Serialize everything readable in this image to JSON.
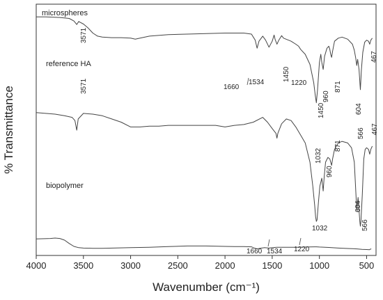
{
  "chart_data": {
    "type": "line",
    "xlabel": "Wavenumber (cm⁻¹)",
    "ylabel": "% Transmittance",
    "xlim": [
      4000,
      400
    ],
    "x_reversed": true,
    "x_ticks": [
      4000,
      3500,
      3000,
      2500,
      2000,
      1500,
      1000,
      500
    ],
    "y_ticks_shown": false,
    "grid": false,
    "y_note": "y values are relative % transmittance on an arbitrary 0-100 scale (stacked, offset spectra); the axis has no ticks",
    "series": [
      {
        "name": "microspheres",
        "points": [
          [
            4000,
            97
          ],
          [
            3900,
            97
          ],
          [
            3750,
            96.5
          ],
          [
            3650,
            95.5
          ],
          [
            3600,
            93
          ],
          [
            3571,
            89.5
          ],
          [
            3550,
            92.5
          ],
          [
            3500,
            90
          ],
          [
            3450,
            86
          ],
          [
            3400,
            81
          ],
          [
            3350,
            78
          ],
          [
            3300,
            77
          ],
          [
            3200,
            76.5
          ],
          [
            3100,
            76.5
          ],
          [
            3000,
            76
          ],
          [
            2950,
            75
          ],
          [
            2900,
            76
          ],
          [
            2800,
            78
          ],
          [
            2600,
            79.5
          ],
          [
            2400,
            80
          ],
          [
            2200,
            80.5
          ],
          [
            2000,
            81
          ],
          [
            1800,
            81
          ],
          [
            1720,
            80
          ],
          [
            1680,
            74
          ],
          [
            1660,
            66
          ],
          [
            1640,
            73
          ],
          [
            1600,
            78
          ],
          [
            1570,
            74
          ],
          [
            1534,
            67
          ],
          [
            1500,
            73
          ],
          [
            1480,
            79
          ],
          [
            1470,
            75
          ],
          [
            1450,
            70
          ],
          [
            1430,
            74
          ],
          [
            1400,
            78.5
          ],
          [
            1380,
            76
          ],
          [
            1300,
            73
          ],
          [
            1250,
            70
          ],
          [
            1220,
            68
          ],
          [
            1200,
            65
          ],
          [
            1150,
            60
          ],
          [
            1100,
            50
          ],
          [
            1060,
            32
          ],
          [
            1045,
            20
          ],
          [
            1032,
            12
          ],
          [
            1020,
            25
          ],
          [
            1000,
            52
          ],
          [
            985,
            60
          ],
          [
            975,
            52
          ],
          [
            960,
            45
          ],
          [
            945,
            58
          ],
          [
            920,
            66
          ],
          [
            900,
            68
          ],
          [
            890,
            65
          ],
          [
            880,
            60
          ],
          [
            871,
            57
          ],
          [
            860,
            63
          ],
          [
            840,
            73
          ],
          [
            800,
            76
          ],
          [
            760,
            77
          ],
          [
            700,
            75
          ],
          [
            650,
            70
          ],
          [
            630,
            64
          ],
          [
            615,
            56
          ],
          [
            604,
            49
          ],
          [
            595,
            55
          ],
          [
            580,
            45
          ],
          [
            570,
            30
          ],
          [
            566,
            25
          ],
          [
            555,
            45
          ],
          [
            540,
            62
          ],
          [
            520,
            72
          ],
          [
            500,
            74
          ],
          [
            480,
            73
          ],
          [
            467,
            70
          ],
          [
            455,
            74
          ],
          [
            440,
            76
          ]
        ]
      },
      {
        "name": "reference HA",
        "points": [
          [
            4000,
            71
          ],
          [
            3800,
            70
          ],
          [
            3700,
            69
          ],
          [
            3620,
            68
          ],
          [
            3590,
            66
          ],
          [
            3571,
            60
          ],
          [
            3555,
            67
          ],
          [
            3500,
            70.5
          ],
          [
            3400,
            70
          ],
          [
            3300,
            69
          ],
          [
            3200,
            67
          ],
          [
            3100,
            65
          ],
          [
            3000,
            62
          ],
          [
            2900,
            62
          ],
          [
            2800,
            62.5
          ],
          [
            2700,
            62.5
          ],
          [
            2600,
            63
          ],
          [
            2500,
            63
          ],
          [
            2400,
            63
          ],
          [
            2300,
            63
          ],
          [
            2200,
            63
          ],
          [
            2100,
            63
          ],
          [
            2000,
            62
          ],
          [
            1900,
            63
          ],
          [
            1800,
            63.5
          ],
          [
            1700,
            65
          ],
          [
            1600,
            68
          ],
          [
            1550,
            65
          ],
          [
            1500,
            61
          ],
          [
            1460,
            58
          ],
          [
            1450,
            55
          ],
          [
            1440,
            58
          ],
          [
            1400,
            64
          ],
          [
            1350,
            67
          ],
          [
            1300,
            66
          ],
          [
            1250,
            62
          ],
          [
            1200,
            57
          ],
          [
            1150,
            52
          ],
          [
            1100,
            40
          ],
          [
            1070,
            25
          ],
          [
            1050,
            13
          ],
          [
            1040,
            6
          ],
          [
            1032,
            3
          ],
          [
            1025,
            4
          ],
          [
            1010,
            15
          ],
          [
            995,
            25
          ],
          [
            975,
            30
          ],
          [
            960,
            22
          ],
          [
            950,
            30
          ],
          [
            935,
            40
          ],
          [
            910,
            43
          ],
          [
            890,
            42
          ],
          [
            880,
            40
          ],
          [
            871,
            38
          ],
          [
            860,
            42
          ],
          [
            840,
            48
          ],
          [
            800,
            52
          ],
          [
            760,
            53
          ],
          [
            700,
            52
          ],
          [
            660,
            49
          ],
          [
            630,
            40
          ],
          [
            615,
            22
          ],
          [
            604,
            10
          ],
          [
            598,
            14
          ],
          [
            590,
            18
          ],
          [
            580,
            10
          ],
          [
            572,
            3
          ],
          [
            566,
            0
          ],
          [
            560,
            3
          ],
          [
            545,
            20
          ],
          [
            530,
            42
          ],
          [
            515,
            48
          ],
          [
            500,
            49
          ],
          [
            480,
            48
          ],
          [
            467,
            45
          ],
          [
            455,
            48
          ],
          [
            440,
            50
          ]
        ]
      },
      {
        "name": "biopolymer",
        "points": [
          [
            4000,
            28
          ],
          [
            3850,
            29
          ],
          [
            3800,
            30
          ],
          [
            3750,
            29
          ],
          [
            3700,
            25
          ],
          [
            3650,
            17
          ],
          [
            3600,
            10
          ],
          [
            3550,
            7
          ],
          [
            3500,
            6
          ],
          [
            3400,
            5.5
          ],
          [
            3300,
            5.5
          ],
          [
            3000,
            7
          ],
          [
            2800,
            8
          ],
          [
            2600,
            9.5
          ],
          [
            2400,
            11
          ],
          [
            2200,
            11
          ],
          [
            2000,
            10
          ],
          [
            1900,
            9.5
          ],
          [
            1800,
            9.5
          ],
          [
            1720,
            9
          ],
          [
            1690,
            6
          ],
          [
            1660,
            4
          ],
          [
            1630,
            5.5
          ],
          [
            1580,
            7
          ],
          [
            1534,
            6
          ],
          [
            1500,
            7
          ],
          [
            1450,
            8
          ],
          [
            1350,
            8
          ],
          [
            1250,
            8
          ],
          [
            1220,
            8
          ],
          [
            1200,
            8.2
          ],
          [
            1150,
            8.5
          ],
          [
            1100,
            8.8
          ],
          [
            1050,
            9
          ],
          [
            1032,
            9
          ],
          [
            1000,
            8.5
          ],
          [
            900,
            7.5
          ],
          [
            800,
            6
          ],
          [
            700,
            5
          ],
          [
            600,
            4
          ],
          [
            550,
            3
          ],
          [
            500,
            2.5
          ],
          [
            470,
            2
          ],
          [
            460,
            3.5
          ],
          [
            450,
            4
          ]
        ]
      }
    ],
    "annotations": [
      {
        "series": "microspheres",
        "text": "microspheres"
      },
      {
        "series": "microspheres",
        "text": "3571"
      },
      {
        "series": "microspheres",
        "text": "1660"
      },
      {
        "series": "microspheres",
        "text": "1534"
      },
      {
        "series": "microspheres",
        "text": "1450"
      },
      {
        "series": "microspheres",
        "text": "1220"
      },
      {
        "series": "microspheres",
        "text": "960"
      },
      {
        "series": "microspheres",
        "text": "871"
      },
      {
        "series": "microspheres",
        "text": "604"
      },
      {
        "series": "microspheres",
        "text": "467"
      },
      {
        "series": "reference HA",
        "text": "reference HA"
      },
      {
        "series": "reference HA",
        "text": "3571"
      },
      {
        "series": "reference HA",
        "text": "1450"
      },
      {
        "series": "reference HA",
        "text": "1032"
      },
      {
        "series": "reference HA",
        "text": "960"
      },
      {
        "series": "reference HA",
        "text": "871"
      },
      {
        "series": "reference HA",
        "text": "566"
      },
      {
        "series": "reference HA",
        "text": "467"
      },
      {
        "series": "reference HA",
        "text": "604"
      },
      {
        "series": "reference HA",
        "text": "566"
      },
      {
        "series": "biopolymer",
        "text": "biopolymer"
      },
      {
        "series": "biopolymer",
        "text": "1032"
      },
      {
        "series": "biopolymer",
        "text": "1660"
      },
      {
        "series": "biopolymer",
        "text": "1534"
      },
      {
        "series": "biopolymer",
        "text": "1220"
      }
    ]
  }
}
